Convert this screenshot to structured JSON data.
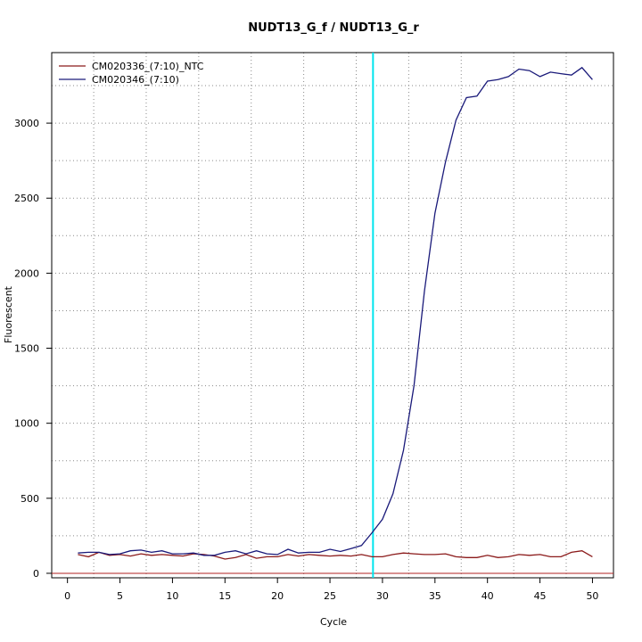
{
  "chart_data": {
    "type": "line",
    "title": "NUDT13_G_f / NUDT13_G_r",
    "xlabel": "Cycle",
    "ylabel": "Fluorescent",
    "xlim": [
      -1.5,
      52
    ],
    "ylim": [
      -30,
      3470
    ],
    "xticks": [
      0,
      5,
      10,
      15,
      20,
      25,
      30,
      35,
      40,
      45,
      50
    ],
    "yticks": [
      0,
      500,
      1000,
      1500,
      2000,
      2500,
      3000
    ],
    "grid": "dotted",
    "legend_position": "top-left",
    "threshold_cycle": 29.1,
    "baseline_value": 0,
    "colors": {
      "ntc": "#8b1a1a",
      "sample": "#1a1a7a",
      "threshold": "#00e5ee",
      "baseline": "#b22222"
    },
    "x": [
      1,
      2,
      3,
      4,
      5,
      6,
      7,
      8,
      9,
      10,
      11,
      12,
      13,
      14,
      15,
      16,
      17,
      18,
      19,
      20,
      21,
      22,
      23,
      24,
      25,
      26,
      27,
      28,
      29,
      30,
      31,
      32,
      33,
      34,
      35,
      36,
      37,
      38,
      39,
      40,
      41,
      42,
      43,
      44,
      45,
      46,
      47,
      48,
      49,
      50
    ],
    "series": [
      {
        "name": "CM020336_(7:10)_NTC",
        "values": [
          125,
          110,
          140,
          120,
          125,
          115,
          130,
          120,
          125,
          120,
          115,
          130,
          125,
          115,
          95,
          105,
          125,
          100,
          110,
          110,
          125,
          115,
          125,
          120,
          115,
          120,
          115,
          125,
          110,
          110,
          125,
          135,
          130,
          125,
          125,
          130,
          110,
          105,
          105,
          120,
          105,
          110,
          125,
          120,
          125,
          110,
          110,
          140,
          150,
          110
        ]
      },
      {
        "name": "CM020346_(7:10)",
        "values": [
          135,
          140,
          140,
          125,
          130,
          150,
          155,
          140,
          150,
          130,
          130,
          135,
          120,
          120,
          140,
          150,
          130,
          150,
          130,
          125,
          160,
          135,
          140,
          140,
          160,
          145,
          165,
          185,
          270,
          360,
          530,
          820,
          1250,
          1880,
          2400,
          2740,
          3020,
          3170,
          3180,
          3280,
          3290,
          3310,
          3360,
          3350,
          3310,
          3340,
          3330,
          3320,
          3370,
          3290
        ]
      }
    ]
  }
}
